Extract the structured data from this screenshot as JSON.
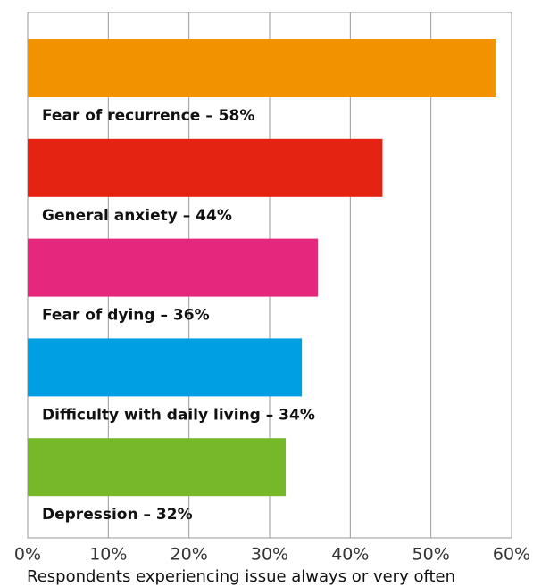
{
  "chart_data": {
    "type": "bar",
    "orientation": "horizontal",
    "x_label": "Respondents experiencing issue always or very often",
    "categories": [
      "Fear of recurrence – 58%",
      "General anxiety – 44%",
      "Fear of dying – 36%",
      "Difficulty with daily living – 34%",
      "Depression – 32%"
    ],
    "values": [
      58,
      44,
      36,
      34,
      32
    ],
    "colors": [
      "#f39200",
      "#e42313",
      "#e5287d",
      "#009fe3",
      "#76b82a"
    ],
    "xlim": [
      0,
      60
    ],
    "xticks": [
      {
        "value": 0,
        "label": "0%"
      },
      {
        "value": 10,
        "label": "10%"
      },
      {
        "value": 20,
        "label": "20%"
      },
      {
        "value": 30,
        "label": "30%"
      },
      {
        "value": 40,
        "label": "40%"
      },
      {
        "value": 50,
        "label": "50%"
      },
      {
        "value": 60,
        "label": "60%"
      }
    ],
    "grid": true
  }
}
